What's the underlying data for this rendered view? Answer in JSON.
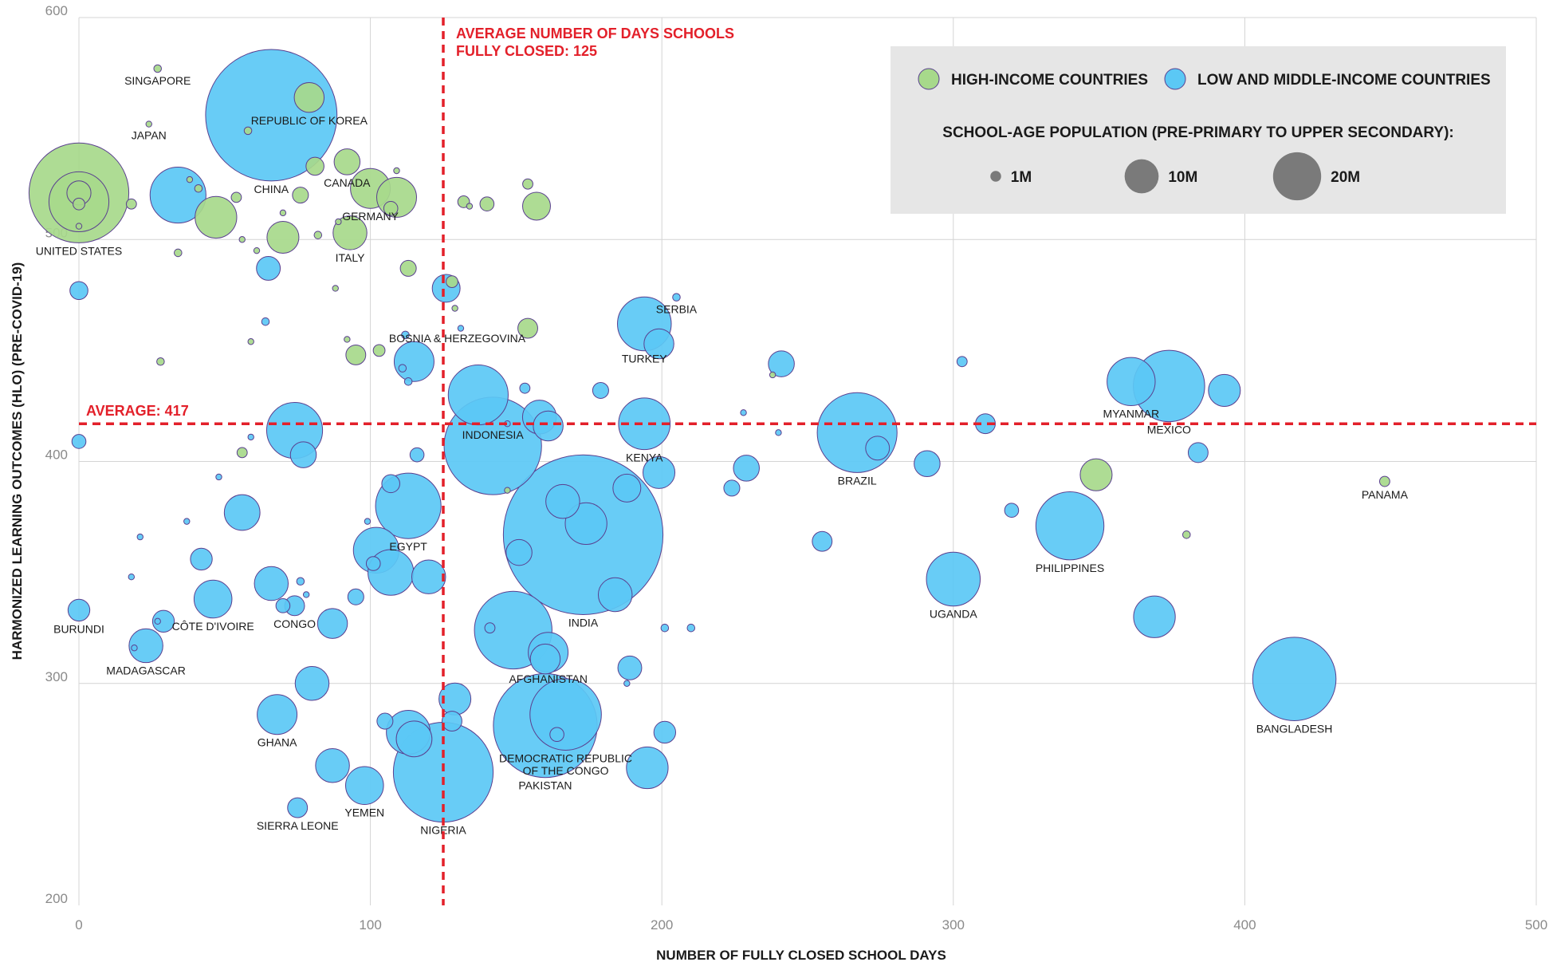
{
  "chart_data": {
    "type": "scatter",
    "x_label": "NUMBER OF FULLY CLOSED SCHOOL DAYS",
    "y_label": "HARMONIZED LEARNING OUTCOMES (HLO) (PRE-COVID-19)",
    "xlim": [
      0,
      500
    ],
    "xticks": [
      0,
      100,
      200,
      300,
      400,
      500
    ],
    "ylim": [
      200,
      600
    ],
    "yticks": [
      200,
      300,
      400,
      500,
      600
    ],
    "grid": true,
    "annotations": [
      {
        "axis": "x",
        "value": 125,
        "text": [
          "AVERAGE NUMBER OF DAYS SCHOOLS",
          "FULLY CLOSED: 125"
        ],
        "color": "#e3202a"
      },
      {
        "axis": "y",
        "value": 417,
        "text": [
          "AVERAGE: 417"
        ],
        "color": "#e3202a"
      }
    ],
    "size_legend": {
      "title": "SCHOOL-AGE POPULATION (PRE-PRIMARY TO UPPER SECONDARY):",
      "sizes": [
        {
          "value": 1,
          "label": "1M"
        },
        {
          "value": 10,
          "label": "10M"
        },
        {
          "value": 20,
          "label": "20M"
        }
      ]
    },
    "legend": "top-right",
    "series": [
      {
        "name": "HIGH-INCOME COUNTRIES",
        "color": "#a7d98b",
        "x": [
          0,
          0,
          0,
          0,
          0,
          27,
          24,
          79,
          92,
          100,
          109,
          93,
          47,
          70,
          76,
          81,
          41,
          54,
          18,
          58,
          70,
          38,
          82,
          88,
          56,
          61,
          34,
          109,
          107,
          113,
          128,
          132,
          140,
          154,
          157,
          134,
          154,
          95,
          103,
          92,
          59,
          28,
          56,
          89,
          129,
          147,
          238,
          349,
          448,
          380
        ],
        "values": [
          521,
          517,
          521,
          516,
          506,
          577,
          552,
          564,
          535,
          523,
          519,
          503,
          510,
          501,
          520,
          533,
          523,
          519,
          516,
          549,
          512,
          527,
          502,
          478,
          500,
          495,
          494,
          531,
          514,
          487,
          481,
          517,
          516,
          525,
          515,
          515,
          460,
          448,
          450,
          455,
          454,
          445,
          404,
          508,
          469,
          387,
          439,
          394,
          391,
          367
        ],
        "sizes": [
          86,
          31,
          5,
          1.2,
          0.3,
          0.5,
          0.3,
          7.7,
          5.8,
          13.7,
          13.7,
          9.9,
          15,
          8.8,
          2.2,
          2.8,
          0.5,
          0.9,
          0.9,
          0.5,
          0.3,
          0.3,
          0.5,
          0.3,
          0.3,
          0.3,
          0.5,
          0.3,
          1.7,
          2.2,
          1.2,
          1.2,
          1.7,
          0.9,
          6.7,
          0.3,
          3.4,
          3.4,
          1.2,
          0.3,
          0.3,
          0.5,
          0.9,
          0.3,
          0.3,
          0.3,
          0.3,
          8.8,
          0.9,
          0.5
        ],
        "labels": [
          "UNITED STATES",
          null,
          null,
          null,
          null,
          "SINGAPORE",
          "JAPAN",
          "REPUBLIC OF KOREA",
          "CANADA",
          "GERMANY",
          null,
          "ITALY",
          null,
          null,
          null,
          null,
          null,
          null,
          null,
          null,
          null,
          null,
          null,
          null,
          null,
          null,
          null,
          null,
          null,
          null,
          null,
          null,
          null,
          null,
          null,
          null,
          null,
          null,
          null,
          null,
          null,
          null,
          null,
          null,
          null,
          null,
          null,
          null,
          "PANAMA",
          null
        ]
      },
      {
        "name": "LOW AND MIDDLE-INCOME COUNTRIES",
        "color": "#5bc8f5",
        "x": [
          66,
          34,
          65,
          0,
          64,
          126,
          112,
          115,
          113,
          111,
          131,
          153,
          137,
          142,
          147,
          158,
          161,
          179,
          205,
          194,
          199,
          228,
          241,
          240,
          303,
          311,
          194,
          199,
          188,
          224,
          229,
          267,
          274,
          291,
          361,
          374,
          393,
          384,
          320,
          255,
          340,
          300,
          369,
          417,
          173,
          166,
          174,
          151,
          184,
          201,
          210,
          149,
          161,
          160,
          189,
          188,
          160,
          167,
          164,
          201,
          195,
          125,
          129,
          128,
          115,
          113,
          98,
          87,
          105,
          75,
          68,
          80,
          113,
          107,
          102,
          107,
          101,
          99,
          120,
          95,
          87,
          77,
          116,
          74,
          59,
          48,
          56,
          37,
          21,
          42,
          18,
          66,
          76,
          78,
          74,
          70,
          46,
          29,
          27,
          0,
          23,
          19,
          0,
          141
        ],
        "values": [
          556,
          520,
          487,
          477,
          463,
          478,
          457,
          445,
          436,
          442,
          460,
          433,
          430,
          407,
          417,
          420,
          416,
          432,
          474,
          462,
          453,
          422,
          444,
          413,
          445,
          417,
          417,
          395,
          388,
          388,
          397,
          413,
          406,
          399,
          436,
          434,
          432,
          404,
          378,
          364,
          371,
          347,
          330,
          302,
          367,
          382,
          372,
          359,
          340,
          325,
          325,
          324,
          314,
          311,
          307,
          300,
          281,
          286,
          277,
          278,
          262,
          260,
          293,
          283,
          275,
          278,
          254,
          263,
          283,
          244,
          286,
          300,
          380,
          390,
          360,
          350,
          354,
          373,
          348,
          339,
          327,
          403,
          403,
          414,
          411,
          393,
          377,
          373,
          366,
          356,
          348,
          345,
          346,
          340,
          335,
          335,
          338,
          328,
          328,
          333,
          317,
          316,
          409,
          325
        ],
        "sizes": [
          149,
          27,
          4.9,
          2.8,
          0.5,
          6.7,
          0.5,
          13.7,
          0.5,
          0.5,
          0.3,
          0.9,
          31,
          82,
          0.3,
          9.9,
          7.7,
          2.2,
          0.5,
          25,
          7.7,
          0.3,
          5.8,
          0.3,
          0.9,
          3.4,
          23,
          8.8,
          6.7,
          2.2,
          5.8,
          55,
          4.9,
          5.8,
          20,
          44,
          8.8,
          3.4,
          1.7,
          3.4,
          40,
          25,
          15,
          60,
          220,
          9.9,
          15,
          5.8,
          9.9,
          0.5,
          0.5,
          52,
          13.7,
          7.7,
          4.9,
          0.3,
          93,
          44,
          1.7,
          4.1,
          15,
          86,
          8.8,
          3.4,
          11,
          16.6,
          12.4,
          9.9,
          2.2,
          3.4,
          13.7,
          9.9,
          37,
          2.8,
          18,
          18,
          1.7,
          0.3,
          9.9,
          2.2,
          7.7,
          5.8,
          1.7,
          27,
          0.3,
          0.3,
          11,
          0.3,
          0.3,
          4.1,
          0.3,
          9.9,
          0.5,
          0.3,
          3.4,
          1.7,
          12.4,
          4.1,
          0.3,
          4.1,
          9.9,
          0.3,
          1.7,
          0.9
        ],
        "labels": [
          "CHINA",
          null,
          null,
          null,
          null,
          null,
          "BOSNIA & HERZEGOVINA",
          null,
          null,
          null,
          null,
          null,
          null,
          "INDONESIA",
          null,
          null,
          null,
          null,
          "SERBIA",
          "TURKEY",
          null,
          null,
          null,
          null,
          null,
          null,
          "KENYA",
          null,
          null,
          null,
          null,
          "BRAZIL",
          null,
          null,
          "MYANMAR",
          "MEXICO",
          null,
          null,
          null,
          null,
          "PHILIPPINES",
          "UGANDA",
          null,
          "BANGLADESH",
          "INDIA",
          null,
          null,
          null,
          null,
          null,
          null,
          "AFGHANISTAN",
          null,
          null,
          null,
          null,
          "PAKISTAN",
          "DEMOCRATIC REPUBLIC\nOF THE CONGO",
          null,
          null,
          null,
          "NIGERIA",
          null,
          null,
          null,
          null,
          "YEMEN",
          null,
          null,
          "SIERRA LEONE",
          "GHANA",
          null,
          "EGYPT",
          null,
          null,
          null,
          null,
          null,
          null,
          null,
          null,
          null,
          null,
          null,
          null,
          null,
          null,
          null,
          null,
          null,
          null,
          null,
          null,
          null,
          "CONGO",
          null,
          "CÔTE D'IVOIRE",
          null,
          null,
          "BURUNDI",
          "MADAGASCAR",
          null,
          null,
          null
        ]
      }
    ]
  }
}
